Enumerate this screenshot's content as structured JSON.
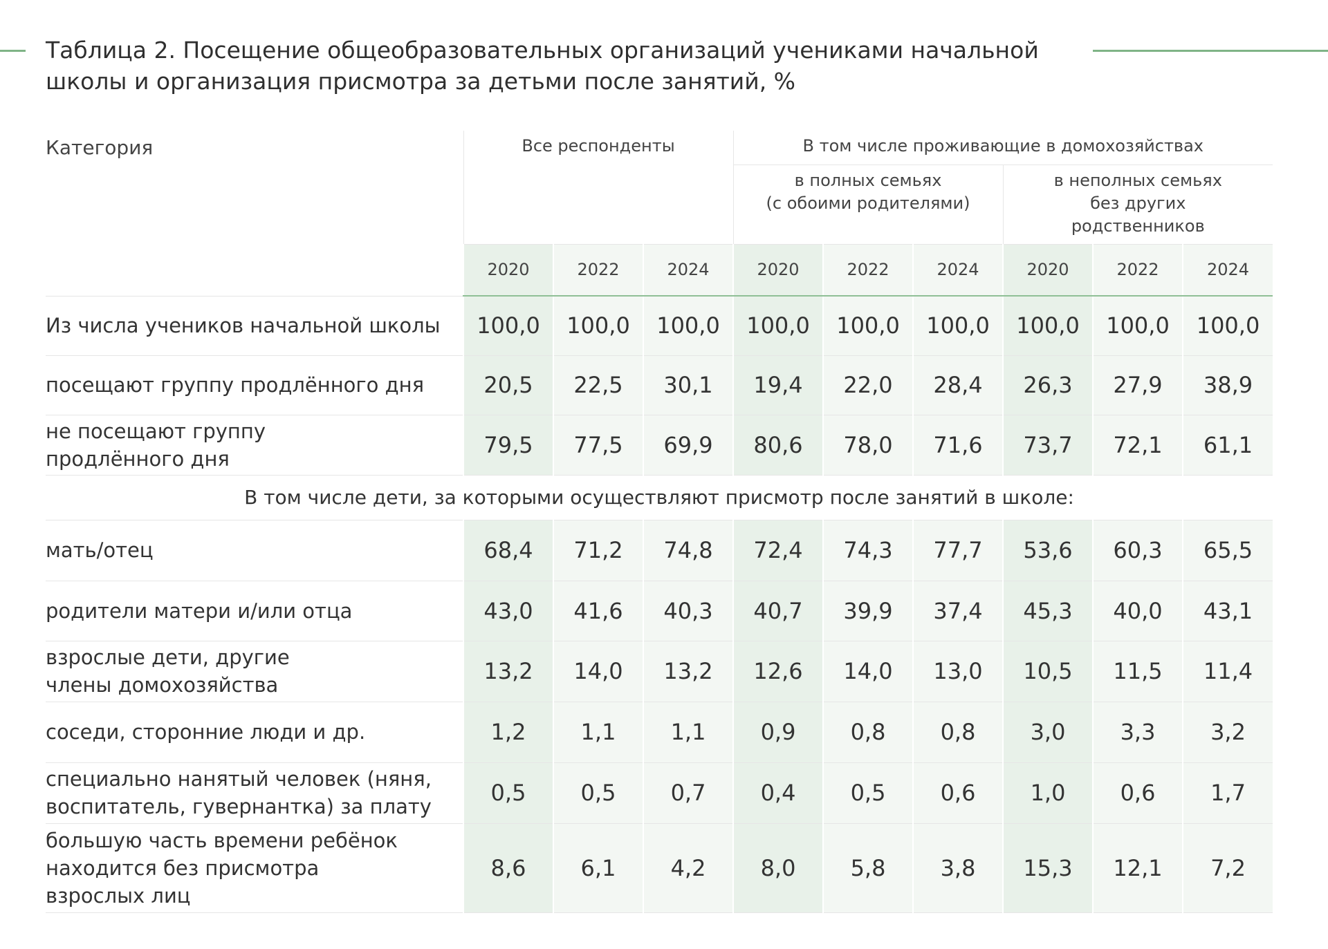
{
  "title": {
    "lines": [
      "Таблица 2. Посещение общеобразовательных организаций учениками начальной",
      "школы и организация присмотра за детьми после занятий, %"
    ]
  },
  "table": {
    "header": {
      "category": "Категория",
      "all": "Все респонденты",
      "including": "В том числе проживающие в домохозяйствах",
      "full": "в полных семьях\n(с обоими родителями)",
      "single": "в неполных семьях\nбез других\nродственников",
      "years": [
        "2020",
        "2022",
        "2024",
        "2020",
        "2022",
        "2024",
        "2020",
        "2022",
        "2024"
      ]
    },
    "rows": [
      {
        "label": "Из числа учеников начальной школы",
        "values": [
          "100,0",
          "100,0",
          "100,0",
          "100,0",
          "100,0",
          "100,0",
          "100,0",
          "100,0",
          "100,0"
        ]
      },
      {
        "label": "посещают группу продлённого дня",
        "values": [
          "20,5",
          "22,5",
          "30,1",
          "19,4",
          "22,0",
          "28,4",
          "26,3",
          "27,9",
          "38,9"
        ]
      },
      {
        "label": "не посещают группу\nпродлённого дня",
        "values": [
          "79,5",
          "77,5",
          "69,9",
          "80,6",
          "78,0",
          "71,6",
          "73,7",
          "72,1",
          "61,1"
        ]
      },
      {
        "section": "В том числе дети, за которыми осуществляют присмотр после занятий в школе:"
      },
      {
        "label": "мать/отец",
        "values": [
          "68,4",
          "71,2",
          "74,8",
          "72,4",
          "74,3",
          "77,7",
          "53,6",
          "60,3",
          "65,5"
        ]
      },
      {
        "label": "родители матери и/или отца",
        "values": [
          "43,0",
          "41,6",
          "40,3",
          "40,7",
          "39,9",
          "37,4",
          "45,3",
          "40,0",
          "43,1"
        ]
      },
      {
        "label": "взрослые дети, другие\nчлены домохозяйства",
        "values": [
          "13,2",
          "14,0",
          "13,2",
          "12,6",
          "14,0",
          "13,0",
          "10,5",
          "11,5",
          "11,4"
        ]
      },
      {
        "label": "соседи, сторонние люди и др.",
        "values": [
          "1,2",
          "1,1",
          "1,1",
          "0,9",
          "0,8",
          "0,8",
          "3,0",
          "3,3",
          "3,2"
        ]
      },
      {
        "label": "специально нанятый человек (няня,\nвоспитатель, гувернантка) за плату",
        "values": [
          "0,5",
          "0,5",
          "0,7",
          "0,4",
          "0,5",
          "0,6",
          "1,0",
          "0,6",
          "1,7"
        ]
      },
      {
        "label": "большую часть времени ребёнок\nнаходится без присмотра\nвзрослых лиц",
        "values": [
          "8,6",
          "6,1",
          "4,2",
          "8,0",
          "5,8",
          "3,8",
          "15,3",
          "12,1",
          "7,2"
        ]
      }
    ]
  }
}
